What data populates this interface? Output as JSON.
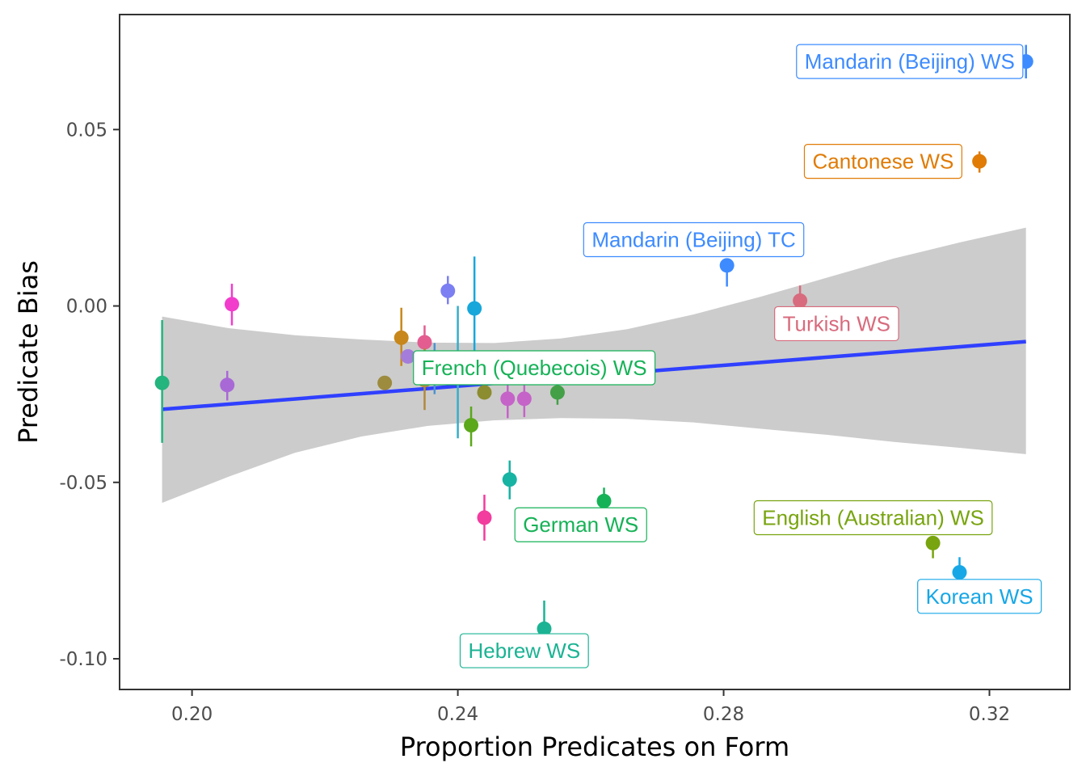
{
  "chart_data": {
    "type": "scatter",
    "xlabel": "Proportion Predicates on Form",
    "ylabel": "Predicate Bias",
    "xlim": [
      0.1891,
      0.3321
    ],
    "ylim": [
      -0.1087,
      0.0826
    ],
    "x_ticks": [
      {
        "value": 0.2,
        "label": "0.20"
      },
      {
        "value": 0.24,
        "label": "0.24"
      },
      {
        "value": 0.28,
        "label": "0.28"
      },
      {
        "value": 0.32,
        "label": "0.32"
      }
    ],
    "y_ticks": [
      {
        "value": 0.05,
        "label": "0.05"
      },
      {
        "value": 0.0,
        "label": "0.00"
      },
      {
        "value": -0.05,
        "label": "-0.05"
      },
      {
        "value": -0.1,
        "label": "-0.10"
      }
    ],
    "grid": false,
    "legend": "none",
    "fit_line": {
      "color": "#3040ff",
      "x": [
        0.1955,
        0.3255
      ],
      "y": [
        -0.0293,
        -0.0101
      ]
    },
    "confidence_band": {
      "color": "#cccccc",
      "x": [
        0.1955,
        0.2055,
        0.2155,
        0.2255,
        0.2355,
        0.2455,
        0.2555,
        0.2655,
        0.2755,
        0.2855,
        0.2955,
        0.3055,
        0.3155,
        0.3255
      ],
      "upper": [
        -0.003,
        -0.0063,
        -0.0083,
        -0.0095,
        -0.0104,
        -0.0105,
        -0.0092,
        -0.0066,
        -0.0024,
        0.0026,
        0.008,
        0.0134,
        0.018,
        0.0222
      ],
      "lower": [
        -0.0558,
        -0.0484,
        -0.0416,
        -0.037,
        -0.034,
        -0.0324,
        -0.0318,
        -0.032,
        -0.033,
        -0.0348,
        -0.0365,
        -0.0385,
        -0.0402,
        -0.042
      ]
    },
    "points": [
      {
        "x": 0.1955,
        "y": -0.0218,
        "ymin": -0.0388,
        "ymax": -0.004,
        "color": "#24b47e",
        "label": ""
      },
      {
        "x": 0.2053,
        "y": -0.0224,
        "ymin": -0.0268,
        "ymax": -0.0184,
        "color": "#a869d6",
        "label": ""
      },
      {
        "x": 0.206,
        "y": 0.0005,
        "ymin": -0.0055,
        "ymax": 0.0063,
        "color": "#f23ccc",
        "label": ""
      },
      {
        "x": 0.229,
        "y": -0.0218,
        "ymin": -0.0218,
        "ymax": -0.0218,
        "color": "#9d8b3e",
        "label": ""
      },
      {
        "x": 0.2315,
        "y": -0.009,
        "ymin": -0.017,
        "ymax": -0.0005,
        "color": "#c8871a",
        "label": ""
      },
      {
        "x": 0.2325,
        "y": -0.0143,
        "ymin": -0.0143,
        "ymax": -0.0143,
        "color": "#a47ddb",
        "label": ""
      },
      {
        "x": 0.235,
        "y": -0.0103,
        "ymin": -0.016,
        "ymax": -0.0055,
        "color": "#e35d91",
        "label": ""
      },
      {
        "x": 0.235,
        "y": -0.021,
        "ymin": -0.0295,
        "ymax": -0.012,
        "color": "#b08a3d",
        "label": ""
      },
      {
        "x": 0.2365,
        "y": -0.0178,
        "ymin": -0.025,
        "ymax": -0.0105,
        "color": "#4d93cf",
        "label": ""
      },
      {
        "x": 0.2385,
        "y": 0.0043,
        "ymin": 0.0005,
        "ymax": 0.0085,
        "color": "#7b7ff2",
        "label": ""
      },
      {
        "x": 0.24,
        "y": -0.0185,
        "ymin": -0.0375,
        "ymax": 0.0,
        "color": "#37aec9",
        "label": ""
      },
      {
        "x": 0.242,
        "y": -0.0338,
        "ymin": -0.0398,
        "ymax": -0.0285,
        "color": "#5ba81a",
        "label": ""
      },
      {
        "x": 0.2425,
        "y": -0.0007,
        "ymin": -0.02,
        "ymax": 0.014,
        "color": "#17a7db",
        "label": ""
      },
      {
        "x": 0.244,
        "y": -0.0245,
        "ymin": -0.0245,
        "ymax": -0.0245,
        "color": "#8c8c30",
        "label": ""
      },
      {
        "x": 0.244,
        "y": -0.06,
        "ymin": -0.0665,
        "ymax": -0.0535,
        "color": "#f23c9e",
        "label": ""
      },
      {
        "x": 0.2475,
        "y": -0.0263,
        "ymin": -0.0318,
        "ymax": -0.021,
        "color": "#c563c8",
        "label": ""
      },
      {
        "x": 0.2478,
        "y": -0.0492,
        "ymin": -0.0548,
        "ymax": -0.0438,
        "color": "#17b3a3",
        "label": ""
      },
      {
        "x": 0.25,
        "y": -0.0263,
        "ymin": -0.0315,
        "ymax": -0.021,
        "color": "#c563c8",
        "label": ""
      },
      {
        "x": 0.253,
        "y": -0.0915,
        "ymin": -0.0915,
        "ymax": -0.0835,
        "color": "#1bb393",
        "label": "Hebrew WS",
        "lx": 0.25,
        "ly": -0.0982
      },
      {
        "x": 0.255,
        "y": -0.0245,
        "ymin": -0.028,
        "ymax": -0.0215,
        "color": "#43a047",
        "label": ""
      },
      {
        "x": 0.262,
        "y": -0.0553,
        "ymin": -0.0553,
        "ymax": -0.0515,
        "color": "#16b257",
        "label": "German WS",
        "lx": 0.2585,
        "ly": -0.0625
      },
      {
        "x": 0.2805,
        "y": 0.0115,
        "ymin": 0.0055,
        "ymax": 0.0115,
        "color": "#3d8bff",
        "label": "Mandarin (Beijing) TC",
        "lx": 0.2755,
        "ly": 0.0183
      },
      {
        "x": 0.2915,
        "y": 0.0015,
        "ymin": 0.0015,
        "ymax": 0.0058,
        "color": "#d86b7d",
        "label": "Turkish WS",
        "lx": 0.297,
        "ly": -0.0055
      },
      {
        "x": 0.3115,
        "y": -0.0672,
        "ymin": -0.0715,
        "ymax": -0.0672,
        "color": "#78a40f",
        "label": "English (Australian) WS",
        "lx": 0.3025,
        "ly": -0.0605
      },
      {
        "x": 0.3155,
        "y": -0.0755,
        "ymin": -0.0755,
        "ymax": -0.0712,
        "color": "#17a7e6",
        "label": "Korean WS",
        "lx": 0.3185,
        "ly": -0.0828
      },
      {
        "x": 0.3185,
        "y": 0.041,
        "ymin": 0.0378,
        "ymax": 0.0438,
        "color": "#e07b06",
        "label": "Cantonese WS",
        "lx": 0.304,
        "ly": 0.0405
      },
      {
        "x": 0.3255,
        "y": 0.0693,
        "ymin": 0.0645,
        "ymax": 0.074,
        "color": "#3d8bff",
        "label": "Mandarin (Beijing) WS",
        "lx": 0.308,
        "ly": 0.0688
      },
      {
        "x": 0.24,
        "y": -0.0185,
        "ymin": -0.0185,
        "ymax": -0.0185,
        "color": "#16b257",
        "label": "French (Quebecois) WS",
        "lx": 0.2515,
        "ly": -0.018
      }
    ]
  }
}
